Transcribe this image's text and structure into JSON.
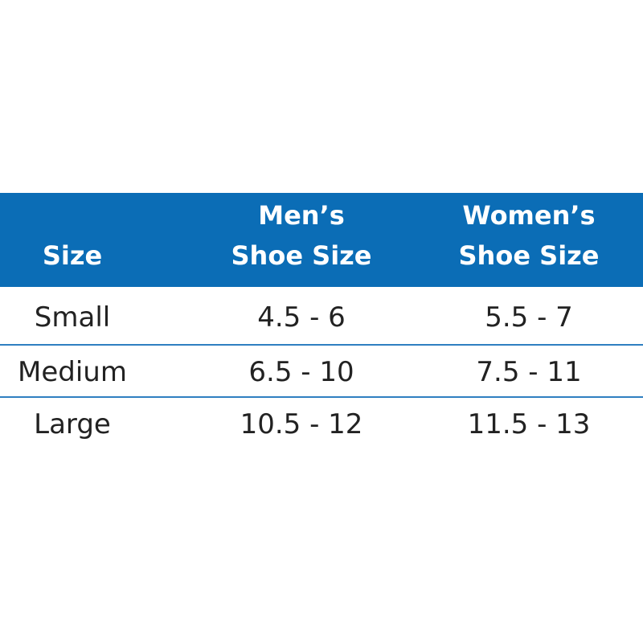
{
  "table": {
    "header": [
      [
        "Size"
      ],
      [
        "Men’s",
        "Shoe Size"
      ],
      [
        "Women’s",
        "Shoe Size"
      ]
    ],
    "rows": [
      [
        "Small",
        "4.5 - 6",
        "5.5 - 7"
      ],
      [
        "Medium",
        "6.5 - 10",
        "7.5 - 11"
      ],
      [
        "Large",
        "10.5 - 12",
        "11.5 - 13"
      ]
    ]
  }
}
